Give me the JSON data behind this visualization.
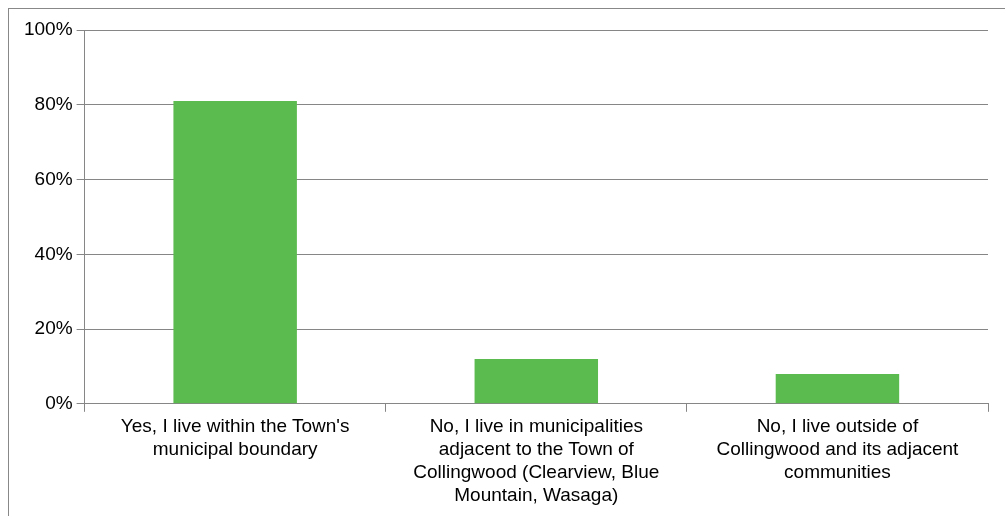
{
  "chart_data": {
    "type": "bar",
    "categories": [
      "Yes, I live within the Town's municipal boundary",
      "No, I live in municipalities adjacent to the Town of Collingwood (Clearview, Blue Mountain, Wasaga)",
      "No, I live outside of Collingwood and its adjacent communities"
    ],
    "values": [
      81,
      12,
      8
    ],
    "color": "#5bbb4e",
    "ylim": [
      0,
      100
    ],
    "yticks": [
      {
        "value": 0,
        "label": "0%"
      },
      {
        "value": 20,
        "label": "20%"
      },
      {
        "value": 40,
        "label": "40%"
      },
      {
        "value": 60,
        "label": "60%"
      },
      {
        "value": 80,
        "label": "80%"
      },
      {
        "value": 100,
        "label": "100%"
      }
    ],
    "grid": "y",
    "legend": false
  }
}
